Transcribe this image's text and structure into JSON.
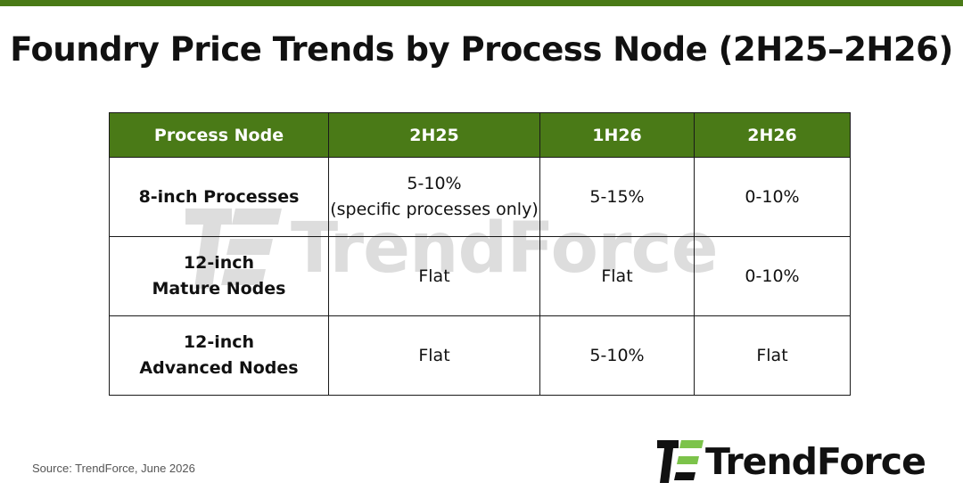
{
  "header": {
    "title": "Foundry Price Trends by Process Node (2H25–2H26)",
    "accent_color": "#4a7a17"
  },
  "table": {
    "columns": [
      "Process Node",
      "2H25",
      "1H26",
      "2H26"
    ],
    "rows": [
      {
        "label_lines": [
          "8-inch Processes"
        ],
        "values": [
          [
            "5-10%",
            "(specific processes only)"
          ],
          [
            "5-15%"
          ],
          [
            "0-10%"
          ]
        ]
      },
      {
        "label_lines": [
          "12-inch",
          "Mature Nodes"
        ],
        "values": [
          [
            "Flat"
          ],
          [
            "Flat"
          ],
          [
            "0-10%"
          ]
        ]
      },
      {
        "label_lines": [
          "12-inch",
          "Advanced Nodes"
        ],
        "values": [
          [
            "Flat"
          ],
          [
            "5-10%"
          ],
          [
            "Flat"
          ]
        ]
      }
    ]
  },
  "chart_data": {
    "type": "table",
    "title": "Foundry Price Trends by Process Node (2H25–2H26)",
    "columns": [
      "Process Node",
      "2H25",
      "1H26",
      "2H26"
    ],
    "rows": [
      [
        "8-inch Processes",
        "5-10% (specific processes only)",
        "5-15%",
        "0-10%"
      ],
      [
        "12-inch Mature Nodes",
        "Flat",
        "Flat",
        "0-10%"
      ],
      [
        "12-inch Advanced Nodes",
        "Flat",
        "5-10%",
        "Flat"
      ]
    ]
  },
  "footer": {
    "source": "Source: TrendForce, June 2026"
  },
  "branding": {
    "logo_text": "TrendForce",
    "watermark_text": "TrendForce",
    "logo_icon": "trendforce-logo-icon",
    "logo_green": "#7cc34a",
    "logo_dark": "#111111"
  }
}
